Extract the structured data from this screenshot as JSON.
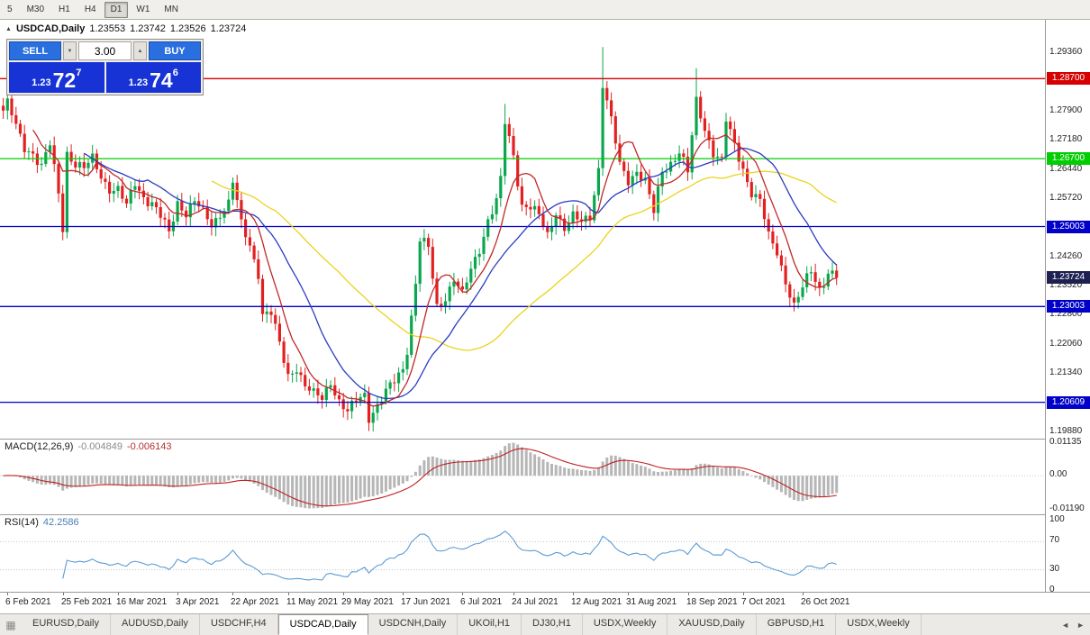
{
  "toolbar": {
    "timeframes": [
      "5",
      "M30",
      "H1",
      "H4",
      "D1",
      "W1",
      "MN"
    ],
    "active": "D1"
  },
  "chart_header": {
    "collapse_icon": "▲",
    "title": "USDCAD,Daily",
    "open": "1.23553",
    "high": "1.23742",
    "low": "1.23526",
    "close": "1.23724"
  },
  "one_click": {
    "sell_label": "SELL",
    "buy_label": "BUY",
    "volume": "3.00",
    "volume_down_icon": "▼",
    "volume_up_icon": "▲",
    "sell": {
      "prefix": "1.23",
      "big": "72",
      "sup": "7"
    },
    "buy": {
      "prefix": "1.23",
      "big": "74",
      "sup": "6"
    },
    "button_color": "#2a6fe0",
    "price_panel_color": "#1733d6"
  },
  "price_axis": [
    {
      "v": 1.2936,
      "label": "1.29360"
    },
    {
      "v": 1.2864,
      "label": "1.28640"
    },
    {
      "v": 1.279,
      "label": "1.27900"
    },
    {
      "v": 1.2718,
      "label": "1.27180"
    },
    {
      "v": 1.2644,
      "label": "1.26440"
    },
    {
      "v": 1.2572,
      "label": "1.25720"
    },
    {
      "v": 1.25,
      "label": "1.25000"
    },
    {
      "v": 1.2426,
      "label": "1.24260"
    },
    {
      "v": 1.2352,
      "label": "1.23520"
    },
    {
      "v": 1.228,
      "label": "1.22800"
    },
    {
      "v": 1.2206,
      "label": "1.22060"
    },
    {
      "v": 1.2134,
      "label": "1.21340"
    },
    {
      "v": 1.206,
      "label": "1.20600"
    },
    {
      "v": 1.1988,
      "label": "1.19880"
    }
  ],
  "hlines": [
    {
      "price": 1.287,
      "label": "1.28700",
      "color": "#d60000"
    },
    {
      "price": 1.267,
      "label": "1.26700",
      "color": "#00ce00"
    },
    {
      "price": 1.25003,
      "label": "1.25003",
      "color": "#0000c8"
    },
    {
      "price": 1.23003,
      "label": "1.23003",
      "color": "#0000c8"
    },
    {
      "price": 1.20609,
      "label": "1.20609",
      "color": "#0000c8"
    }
  ],
  "current_price": {
    "value": 1.23724,
    "label": "1.23724",
    "bg": "#1e2050"
  },
  "date_axis": [
    {
      "i": 1,
      "label": "6 Feb 2021"
    },
    {
      "i": 14,
      "label": "25 Feb 2021"
    },
    {
      "i": 27,
      "label": "16 Mar 2021"
    },
    {
      "i": 41,
      "label": "3 Apr 2021"
    },
    {
      "i": 54,
      "label": "22 Apr 2021"
    },
    {
      "i": 67,
      "label": "11 May 2021"
    },
    {
      "i": 80,
      "label": "29 May 2021"
    },
    {
      "i": 94,
      "label": "17 Jun 2021"
    },
    {
      "i": 108,
      "label": "6 Jul 2021"
    },
    {
      "i": 120,
      "label": "24 Jul 2021"
    },
    {
      "i": 134,
      "label": "12 Aug 2021"
    },
    {
      "i": 147,
      "label": "31 Aug 2021"
    },
    {
      "i": 161,
      "label": "18 Sep 2021"
    },
    {
      "i": 174,
      "label": "7 Oct 2021"
    },
    {
      "i": 188,
      "label": "26 Oct 2021"
    }
  ],
  "tabs": {
    "icon": "▦",
    "items": [
      "EURUSD,Daily",
      "AUDUSD,Daily",
      "USDCHF,H4",
      "USDCAD,Daily",
      "USDCNH,Daily",
      "UKOil,H1",
      "DJ30,H1",
      "USDX,Weekly",
      "XAUUSD,Daily",
      "GBPUSD,H1",
      "USDX,Weekly"
    ],
    "active_index": 3,
    "scroll_left": "◄",
    "scroll_right": "►"
  },
  "chart_data": {
    "type": "candlestick",
    "symbol": "USDCAD",
    "timeframe": "Daily",
    "candle_count": 197,
    "last_close": 1.23724,
    "price_axis_top": 1.3017,
    "price_axis_bottom": 1.197,
    "colors": {
      "up": "#0aa74e",
      "down": "#e32020"
    },
    "close_anchors": [
      [
        0,
        1.279
      ],
      [
        1,
        1.2805
      ],
      [
        3,
        1.2745
      ],
      [
        5,
        1.27
      ],
      [
        7,
        1.269
      ],
      [
        9,
        1.265
      ],
      [
        11,
        1.27
      ],
      [
        13,
        1.258
      ],
      [
        14,
        1.25
      ],
      [
        15,
        1.269
      ],
      [
        17,
        1.266
      ],
      [
        19,
        1.264
      ],
      [
        21,
        1.2665
      ],
      [
        23,
        1.263
      ],
      [
        25,
        1.26
      ],
      [
        27,
        1.259
      ],
      [
        29,
        1.2545
      ],
      [
        31,
        1.261
      ],
      [
        33,
        1.258
      ],
      [
        35,
        1.256
      ],
      [
        37,
        1.252
      ],
      [
        39,
        1.248
      ],
      [
        41,
        1.2565
      ],
      [
        43,
        1.254
      ],
      [
        45,
        1.256
      ],
      [
        47,
        1.253
      ],
      [
        49,
        1.2505
      ],
      [
        51,
        1.254
      ],
      [
        53,
        1.256
      ],
      [
        54,
        1.261
      ],
      [
        56,
        1.25
      ],
      [
        58,
        1.2455
      ],
      [
        60,
        1.239
      ],
      [
        61,
        1.2285
      ],
      [
        63,
        1.228
      ],
      [
        65,
        1.22
      ],
      [
        67,
        1.213
      ],
      [
        69,
        1.2155
      ],
      [
        71,
        1.21
      ],
      [
        73,
        1.2075
      ],
      [
        75,
        1.207
      ],
      [
        77,
        1.212
      ],
      [
        79,
        1.2065
      ],
      [
        81,
        1.203
      ],
      [
        83,
        1.206
      ],
      [
        85,
        1.2085
      ],
      [
        86,
        1.203
      ],
      [
        88,
        1.2055
      ],
      [
        90,
        1.208
      ],
      [
        92,
        1.211
      ],
      [
        94,
        1.215
      ],
      [
        95,
        1.22
      ],
      [
        97,
        1.236
      ],
      [
        98,
        1.2465
      ],
      [
        100,
        1.244
      ],
      [
        102,
        1.23
      ],
      [
        104,
        1.233
      ],
      [
        106,
        1.237
      ],
      [
        108,
        1.2323
      ],
      [
        110,
        1.239
      ],
      [
        112,
        1.245
      ],
      [
        114,
        1.252
      ],
      [
        116,
        1.256
      ],
      [
        117,
        1.261
      ],
      [
        118,
        1.2755
      ],
      [
        120,
        1.268
      ],
      [
        122,
        1.256
      ],
      [
        124,
        1.255
      ],
      [
        126,
        1.252
      ],
      [
        128,
        1.2475
      ],
      [
        130,
        1.2545
      ],
      [
        132,
        1.25
      ],
      [
        134,
        1.252
      ],
      [
        136,
        1.2505
      ],
      [
        138,
        1.253
      ],
      [
        140,
        1.265
      ],
      [
        141,
        1.286
      ],
      [
        143,
        1.276
      ],
      [
        145,
        1.265
      ],
      [
        147,
        1.262
      ],
      [
        149,
        1.2645
      ],
      [
        151,
        1.261
      ],
      [
        153,
        1.253
      ],
      [
        155,
        1.264
      ],
      [
        157,
        1.2665
      ],
      [
        159,
        1.269
      ],
      [
        161,
        1.263
      ],
      [
        163,
        1.281
      ],
      [
        165,
        1.275
      ],
      [
        167,
        1.269
      ],
      [
        169,
        1.266
      ],
      [
        170,
        1.276
      ],
      [
        172,
        1.27
      ],
      [
        174,
        1.265
      ],
      [
        176,
        1.259
      ],
      [
        178,
        1.256
      ],
      [
        180,
        1.247
      ],
      [
        182,
        1.244
      ],
      [
        184,
        1.237
      ],
      [
        186,
        1.23
      ],
      [
        188,
        1.234
      ],
      [
        190,
        1.239
      ],
      [
        192,
        1.235
      ],
      [
        194,
        1.2388
      ],
      [
        196,
        1.23724
      ]
    ],
    "wick_overrides": {
      "14": {
        "l": 1.2468
      },
      "86": {
        "l": 1.2007
      },
      "118": {
        "h": 1.2807
      },
      "141": {
        "h": 1.2949
      },
      "163": {
        "h": 1.2896
      },
      "186": {
        "l": 1.2288
      }
    },
    "moving_averages": [
      {
        "name": "slow",
        "period": 50,
        "color": "#ead31c"
      },
      {
        "name": "medium",
        "period": 20,
        "color": "#2a3cc4"
      },
      {
        "name": "fast",
        "period": 8,
        "color": "#c02828"
      }
    ],
    "macd": {
      "label": "MACD(12,26,9)",
      "main_value": "-0.004849",
      "signal_value": "-0.006143",
      "fast": 12,
      "slow": 26,
      "signal": 9,
      "ymax": 0.01135,
      "ymin": -0.0119,
      "hist_color": "#b6b6b6",
      "signal_color": "#c02020",
      "axis": [
        {
          "v": 0.01135,
          "label": "0.01135"
        },
        {
          "v": 0,
          "label": "0.00"
        },
        {
          "v": -0.0119,
          "label": "-0.01190"
        }
      ]
    },
    "rsi": {
      "label": "RSI(14)",
      "value": "42.2586",
      "period": 14,
      "line_color": "#5b9bd5",
      "levels": [
        70,
        30
      ],
      "axis": [
        {
          "v": 100,
          "label": "100"
        },
        {
          "v": 70,
          "label": "70"
        },
        {
          "v": 30,
          "label": "30"
        },
        {
          "v": 0,
          "label": "0"
        }
      ]
    }
  }
}
